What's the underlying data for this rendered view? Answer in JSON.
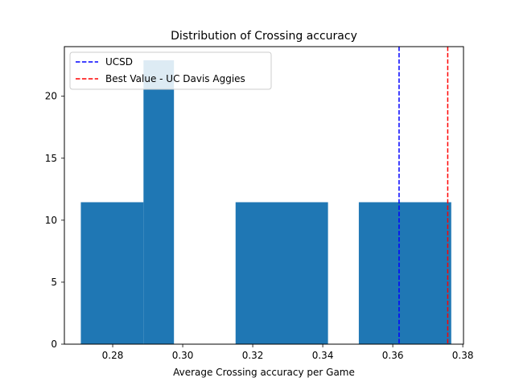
{
  "chart_data": {
    "type": "bar",
    "title": "Distribution of Crossing accuracy",
    "xlabel": "Average Crossing accuracy per Game",
    "ylabel": "",
    "xlim": [
      0.2662,
      0.3802
    ],
    "ylim": [
      0,
      24
    ],
    "xticks": [
      0.28,
      0.3,
      0.32,
      0.34,
      0.36,
      0.38
    ],
    "xtick_labels": [
      "0.28",
      "0.30",
      "0.32",
      "0.34",
      "0.36",
      "0.38"
    ],
    "yticks": [
      0,
      5,
      10,
      15,
      20
    ],
    "ytick_labels": [
      "0",
      "5",
      "10",
      "15",
      "20"
    ],
    "bar_color": "#1f77b4",
    "bins": [
      {
        "x0": 0.2709,
        "x1": 0.2888,
        "value": 11.45
      },
      {
        "x0": 0.2888,
        "x1": 0.2975,
        "value": 22.9
      },
      {
        "x0": 0.3151,
        "x1": 0.3415,
        "value": 11.45
      },
      {
        "x0": 0.3503,
        "x1": 0.3767,
        "value": 11.45
      }
    ],
    "vlines": [
      {
        "name": "UCSD",
        "x": 0.3618,
        "color": "#0000ff",
        "style": "dashed"
      },
      {
        "name": "Best Value - UC Davis Aggies",
        "x": 0.3757,
        "color": "#ff0000",
        "style": "dashed"
      }
    ],
    "legend": {
      "position": "top-left",
      "entries": [
        "UCSD",
        "Best Value - UC Davis Aggies"
      ]
    },
    "grid": false
  }
}
